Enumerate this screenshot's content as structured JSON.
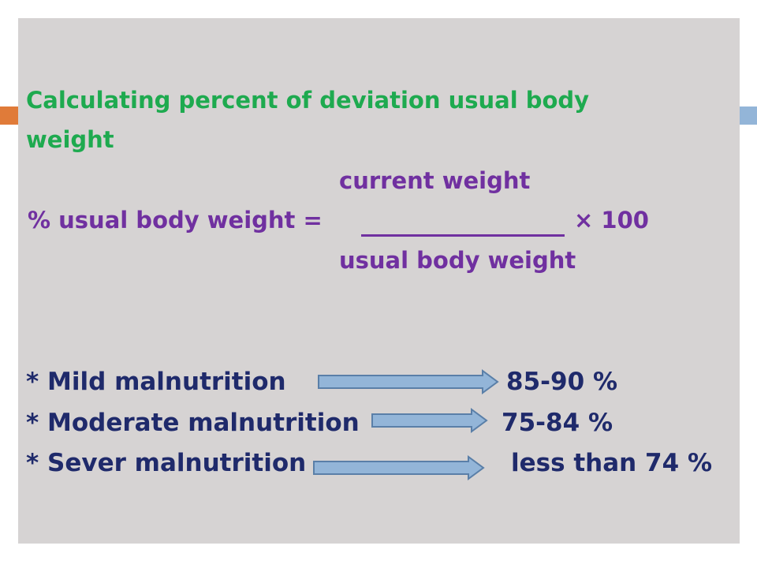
{
  "title": {
    "line1": "Calculating percent of deviation usual body",
    "line2": "weight"
  },
  "formula": {
    "numerator": "current weight",
    "left_side": "% usual body weight =",
    "multiplier": "× 100",
    "denominator": "usual body weight"
  },
  "classifications": [
    {
      "label": "* Mild malnutrition",
      "value": "85-90 %"
    },
    {
      "label": "* Moderate malnutrition",
      "value": "75-84 %"
    },
    {
      "label": "* Sever malnutrition",
      "value": "less than 74 %"
    }
  ],
  "colors": {
    "title": "#1eaa4f",
    "formula": "#7030a0",
    "classification": "#1f2a6b",
    "arrow_fill": "#93b5d8",
    "arrow_stroke": "#5a7fa8",
    "panel": "#d6d3d3",
    "accent_left": "#e07b39",
    "accent_right": "#93b5d8"
  }
}
